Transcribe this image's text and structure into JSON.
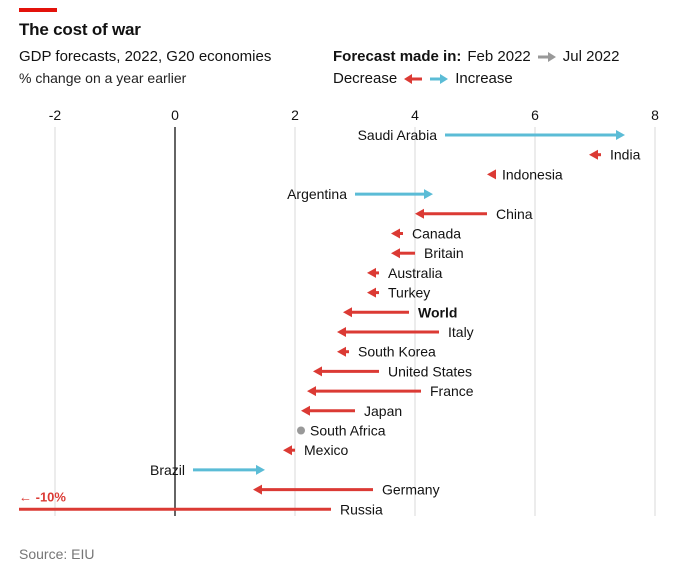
{
  "header": {
    "title": "The cost of war",
    "subtitle": "GDP forecasts, 2022, G20 economies",
    "unit": "% change on a year earlier"
  },
  "legend": {
    "forecast_label": "Forecast made in:",
    "from_label": "Feb 2022",
    "to_label": "Jul 2022",
    "decrease_label": "Decrease",
    "increase_label": "Increase"
  },
  "colors": {
    "decrease": "#db3a34",
    "increase": "#5bbcd6",
    "neutral": "#999999",
    "brand": "#e3120b"
  },
  "source": "Source: EIU",
  "chart_data": {
    "type": "dumbbell-arrow",
    "title": "The cost of war",
    "subtitle": "GDP forecasts, 2022, G20 economies",
    "xlabel": "% change on a year earlier",
    "xlim": [
      -2.6,
      8.3
    ],
    "xticks": [
      -2,
      0,
      2,
      4,
      6,
      8
    ],
    "grid": true,
    "legend_position": "top-right",
    "series": [
      {
        "name": "Saudi Arabia",
        "feb": 4.5,
        "jul": 7.5
      },
      {
        "name": "India",
        "feb": 7.1,
        "jul": 6.9
      },
      {
        "name": "Indonesia",
        "feb": 5.3,
        "jul": 5.2
      },
      {
        "name": "Argentina",
        "feb": 3.0,
        "jul": 4.3
      },
      {
        "name": "China",
        "feb": 5.2,
        "jul": 4.0
      },
      {
        "name": "Canada",
        "feb": 3.8,
        "jul": 3.6
      },
      {
        "name": "Britain",
        "feb": 4.0,
        "jul": 3.6
      },
      {
        "name": "Australia",
        "feb": 3.4,
        "jul": 3.2
      },
      {
        "name": "Turkey",
        "feb": 3.4,
        "jul": 3.2
      },
      {
        "name": "World",
        "feb": 3.9,
        "jul": 2.8,
        "bold": true
      },
      {
        "name": "Italy",
        "feb": 4.4,
        "jul": 2.7
      },
      {
        "name": "South Korea",
        "feb": 2.9,
        "jul": 2.7
      },
      {
        "name": "United States",
        "feb": 3.4,
        "jul": 2.3
      },
      {
        "name": "France",
        "feb": 4.1,
        "jul": 2.2
      },
      {
        "name": "Japan",
        "feb": 3.0,
        "jul": 2.1
      },
      {
        "name": "South Africa",
        "feb": 2.1,
        "jul": 2.1
      },
      {
        "name": "Mexico",
        "feb": 2.0,
        "jul": 1.8
      },
      {
        "name": "Brazil",
        "feb": 0.3,
        "jul": 1.5
      },
      {
        "name": "Germany",
        "feb": 3.3,
        "jul": 1.3
      },
      {
        "name": "Russia",
        "feb": 2.6,
        "jul": -10,
        "offscale_label": "← -10%"
      }
    ]
  }
}
